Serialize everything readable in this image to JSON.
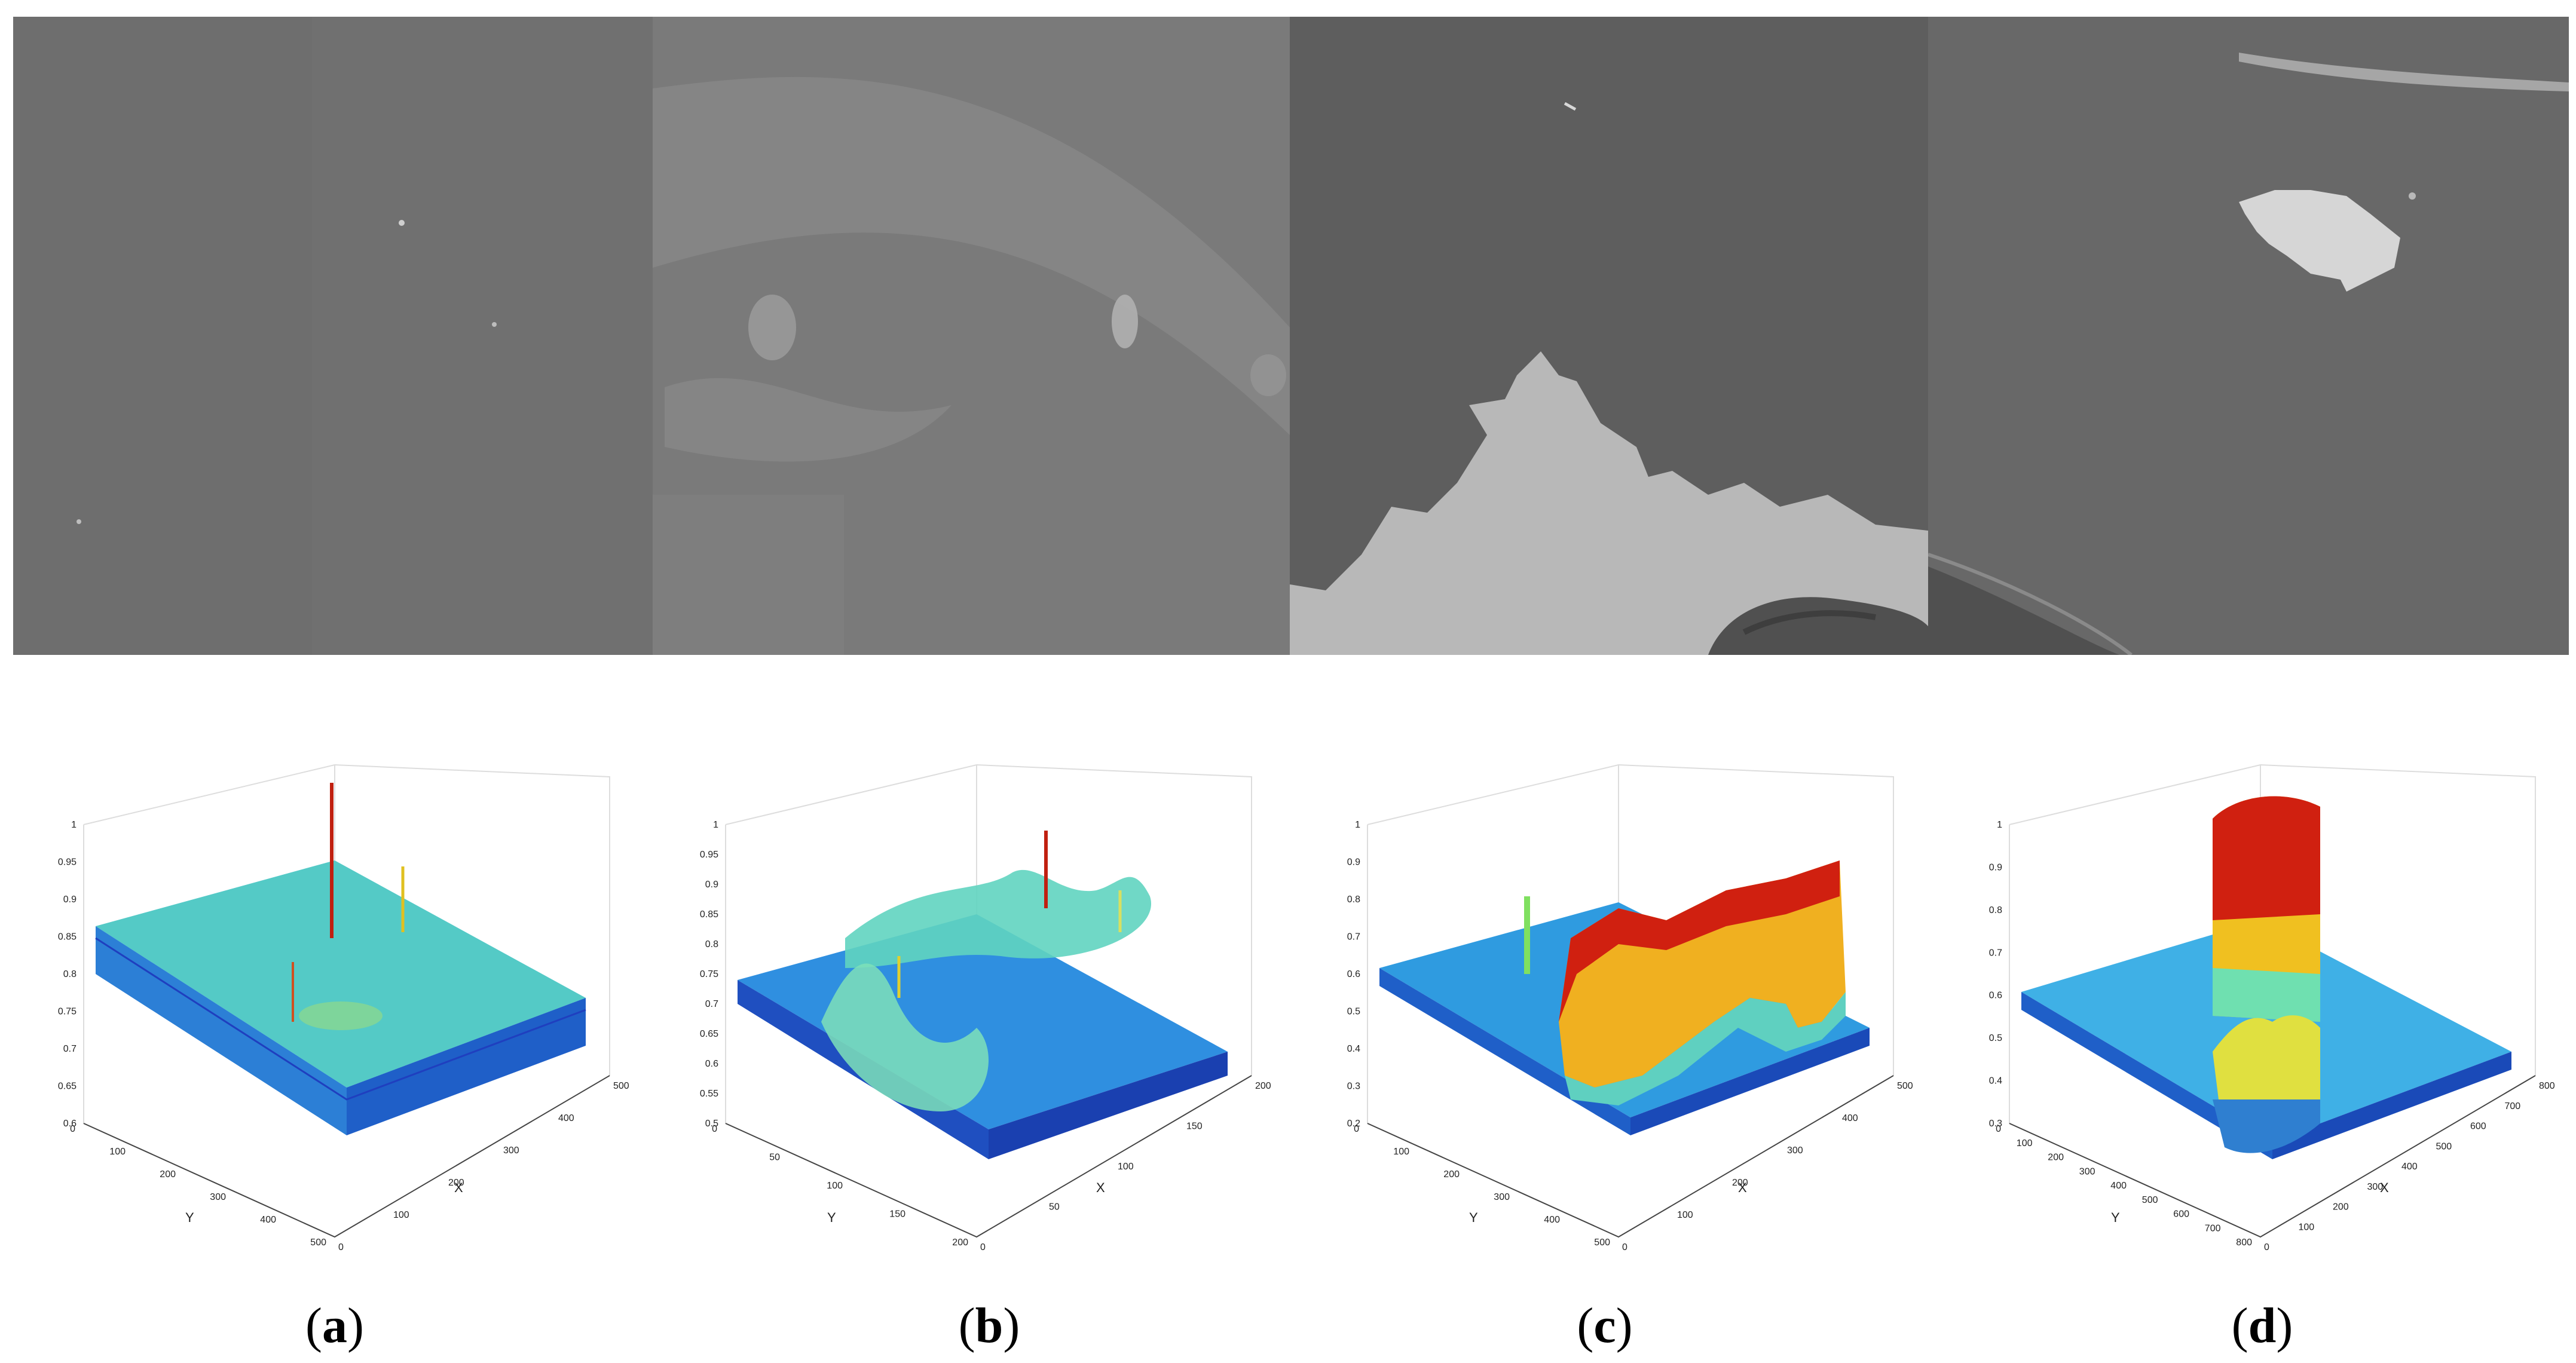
{
  "panels": [
    {
      "label": "a",
      "photo_description_color": "#6f6f6f",
      "z_ticks": [
        "1",
        "0.95",
        "0.9",
        "0.85",
        "0.8",
        "0.75",
        "0.7",
        "0.65",
        "0.6"
      ],
      "x_ticks": [
        "0",
        "100",
        "200",
        "300",
        "400",
        "500"
      ],
      "y_ticks": [
        "0",
        "100",
        "200",
        "300",
        "400",
        "500"
      ],
      "xlabel": "X",
      "ylabel": "Y"
    },
    {
      "label": "b",
      "photo_description_color": "#7a7a7a",
      "z_ticks": [
        "1",
        "0.95",
        "0.9",
        "0.85",
        "0.8",
        "0.75",
        "0.7",
        "0.65",
        "0.6",
        "0.55",
        "0.5"
      ],
      "x_ticks": [
        "0",
        "50",
        "100",
        "150",
        "200"
      ],
      "y_ticks": [
        "0",
        "50",
        "100",
        "150",
        "200"
      ],
      "xlabel": "X",
      "ylabel": "Y"
    },
    {
      "label": "c",
      "photo_description_color": "#5f5f5f",
      "z_ticks": [
        "1",
        "0.9",
        "0.8",
        "0.7",
        "0.6",
        "0.5",
        "0.4",
        "0.3",
        "0.2"
      ],
      "x_ticks": [
        "0",
        "100",
        "200",
        "300",
        "400",
        "500"
      ],
      "y_ticks": [
        "0",
        "100",
        "200",
        "300",
        "400",
        "500"
      ],
      "xlabel": "X",
      "ylabel": "Y"
    },
    {
      "label": "d",
      "photo_description_color": "#676767",
      "z_ticks": [
        "1",
        "0.9",
        "0.8",
        "0.7",
        "0.6",
        "0.5",
        "0.4",
        "0.3"
      ],
      "x_ticks": [
        "0",
        "100",
        "200",
        "300",
        "400",
        "500",
        "600",
        "700",
        "800"
      ],
      "y_ticks": [
        "0",
        "100",
        "200",
        "300",
        "400",
        "500",
        "600",
        "700",
        "800"
      ],
      "xlabel": "X",
      "ylabel": "Y"
    }
  ],
  "colors": {
    "surface_low": "#1f3fbf",
    "surface_mid": "#37c8e6",
    "surface_high": "#d02010",
    "photo_bright": "#d8d8d8"
  }
}
